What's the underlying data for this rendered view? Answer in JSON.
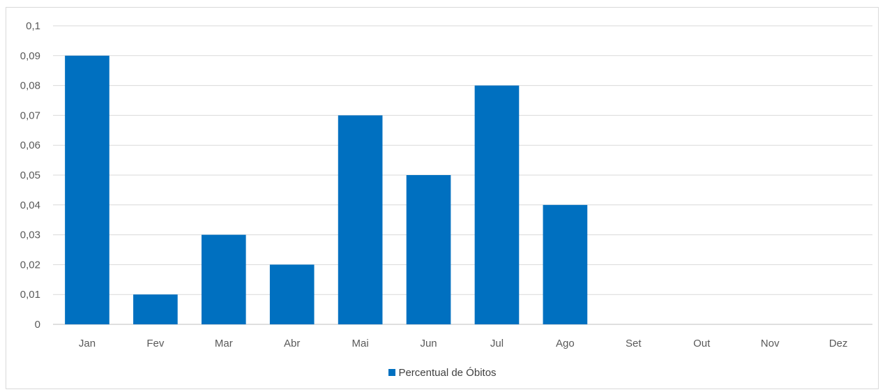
{
  "chart_data": {
    "type": "bar",
    "title": "",
    "xlabel": "",
    "ylabel": "",
    "categories": [
      "Jan",
      "Fev",
      "Mar",
      "Abr",
      "Mai",
      "Jun",
      "Jul",
      "Ago",
      "Set",
      "Out",
      "Nov",
      "Dez"
    ],
    "series": [
      {
        "name": "Percentual de Óbitos",
        "values": [
          0.09,
          0.01,
          0.03,
          0.02,
          0.07,
          0.05,
          0.08,
          0.04,
          0,
          0,
          0,
          0
        ],
        "color": "#0070c0"
      }
    ],
    "ylim": [
      0,
      0.1
    ],
    "yticks": [
      "0",
      "0,01",
      "0,02",
      "0,03",
      "0,04",
      "0,05",
      "0,06",
      "0,07",
      "0,08",
      "0,09",
      "0,1"
    ],
    "grid": true,
    "legend_position": "bottom"
  }
}
